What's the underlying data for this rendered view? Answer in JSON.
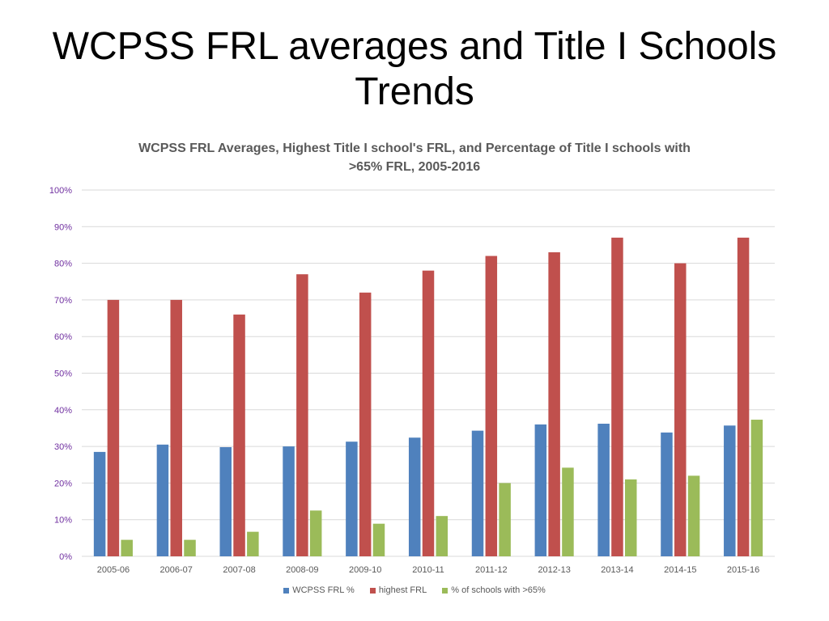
{
  "slide": {
    "title_line1": "WCPSS FRL averages and Title I Schools",
    "title_line2": "Trends"
  },
  "chart_data": {
    "type": "bar",
    "title_line1": "WCPSS FRL Averages, Highest Title I school's FRL, and Percentage of Title I schools with",
    "title_line2": ">65% FRL, 2005-2016",
    "xlabel": "",
    "ylabel": "",
    "ylim": [
      0,
      100
    ],
    "yticks": [
      "0%",
      "10%",
      "20%",
      "30%",
      "40%",
      "50%",
      "60%",
      "70%",
      "80%",
      "90%",
      "100%"
    ],
    "grid": true,
    "legend_position": "bottom",
    "categories": [
      "2005-06",
      "2006-07",
      "2007-08",
      "2008-09",
      "2009-10",
      "2010-11",
      "2011-12",
      "2012-13",
      "2013-14",
      "2014-15",
      "2015-16"
    ],
    "series": [
      {
        "name": "WCPSS FRL %",
        "color": "#4F81BD",
        "values": [
          28.5,
          30.5,
          29.8,
          30,
          31.3,
          32.4,
          34.3,
          36,
          36.2,
          33.8,
          35.7
        ]
      },
      {
        "name": "highest FRL",
        "color": "#C0504D",
        "values": [
          70,
          70,
          66,
          77,
          72,
          78,
          82,
          83,
          87,
          80,
          87
        ]
      },
      {
        "name": "% of schools with >65%",
        "color": "#9BBB59",
        "values": [
          4.5,
          4.5,
          6.7,
          12.5,
          8.9,
          11,
          20,
          24.2,
          21,
          22,
          37.3
        ]
      }
    ],
    "colors": {
      "gridline": "#D9D9D9",
      "tick_text": "#595959",
      "y_tick_text": "#7030A0"
    }
  }
}
